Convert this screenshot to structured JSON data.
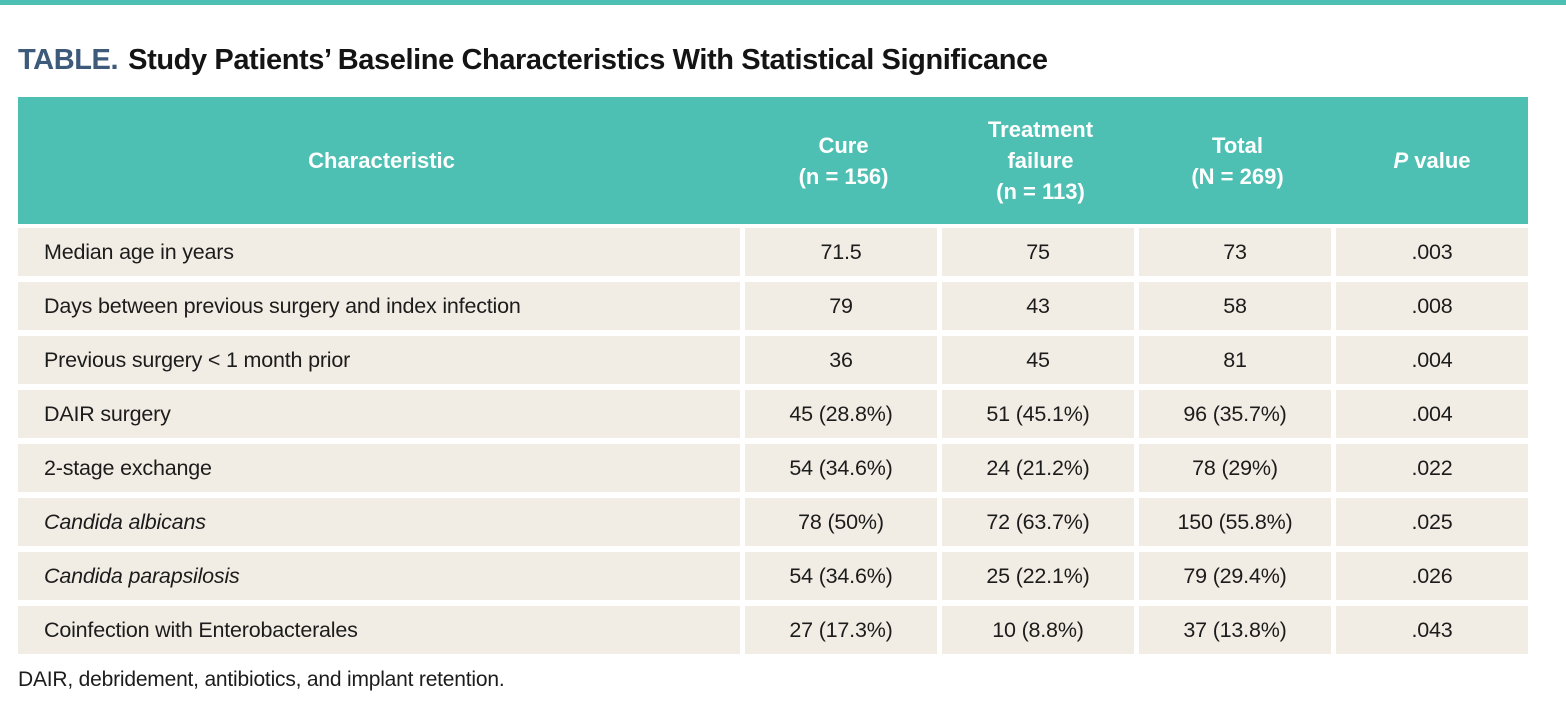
{
  "page": {
    "title_label": "TABLE.",
    "title_text": "Study Patients’ Baseline Characteristics With Statistical Significance",
    "footnote": "DAIR, debridement, antibiotics, and implant retention."
  },
  "colors": {
    "header_teal": "#4ec0b3",
    "row_background": "#f2ede4",
    "title_label_blue": "#3d5a7a",
    "text": "#1c1c1c"
  },
  "table": {
    "headers": {
      "characteristic": "Characteristic",
      "cure_line1": "Cure",
      "cure_line2": "(n = 156)",
      "failure_line1": "Treatment failure",
      "failure_line2": "(n = 113)",
      "total_line1": "Total",
      "total_line2": "(N = 269)",
      "p_italic": "P",
      "p_rest": " value"
    },
    "rows": [
      {
        "characteristic": "Median age in years",
        "cure": "71.5",
        "failure": "75",
        "total": "73",
        "p": ".003"
      },
      {
        "characteristic": "Days between previous surgery and index infection",
        "cure": "79",
        "failure": "43",
        "total": "58",
        "p": ".008"
      },
      {
        "characteristic": "Previous surgery < 1 month prior",
        "cure": "36",
        "failure": "45",
        "total": "81",
        "p": ".004"
      },
      {
        "characteristic": "DAIR surgery",
        "cure": "45 (28.8%)",
        "failure": "51 (45.1%)",
        "total": "96 (35.7%)",
        "p": ".004"
      },
      {
        "characteristic": "2-stage exchange",
        "cure": "54 (34.6%)",
        "failure": "24 (21.2%)",
        "total": "78 (29%)",
        "p": ".022"
      },
      {
        "characteristic": "Candida albicans",
        "cure": "78 (50%)",
        "failure": "72 (63.7%)",
        "total": "150 (55.8%)",
        "p": ".025"
      },
      {
        "characteristic": "Candida parapsilosis",
        "cure": "54 (34.6%)",
        "failure": "25 (22.1%)",
        "total": "79 (29.4%)",
        "p": ".026"
      },
      {
        "characteristic": "Coinfection with Enterobacterales",
        "cure": "27 (17.3%)",
        "failure": "10 (8.8%)",
        "total": "37 (13.8%)",
        "p": ".043"
      }
    ]
  }
}
